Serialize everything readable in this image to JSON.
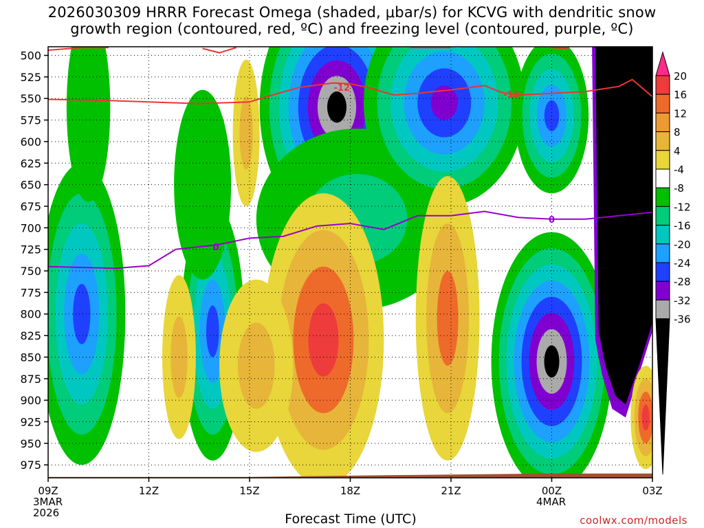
{
  "title": {
    "line1": "2026030309 HRRR Forecast Omega (shaded, μbar/s) for KCVG with dendritic snow",
    "line2": "growth region (contoured, red, ºC) and freezing level (contoured, purple, ºC)"
  },
  "footer": {
    "xlabel": "Forecast Time (UTC)",
    "credit": "coolwx.com/models",
    "date_first": [
      "3MAR",
      "2026"
    ],
    "date_second": "4MAR"
  },
  "chart_data": {
    "type": "heatmap",
    "variable": "Omega",
    "units": "μbar/s",
    "x_ticks": [
      "09Z",
      "12Z",
      "15Z",
      "18Z",
      "21Z",
      "00Z",
      "03Z"
    ],
    "x_range_hours": [
      0,
      18
    ],
    "y_ticks": [
      500,
      525,
      550,
      575,
      600,
      625,
      650,
      675,
      700,
      725,
      750,
      775,
      800,
      825,
      850,
      875,
      900,
      925,
      950,
      975
    ],
    "y_range_hpa": [
      490,
      990
    ],
    "y_reversed": true,
    "grid": "dotted",
    "colorbar": {
      "labels": [
        "20",
        "16",
        "12",
        "8",
        "4",
        "-4",
        "-8",
        "-12",
        "-16",
        "-20",
        "-24",
        "-28",
        "-32",
        "-36"
      ],
      "colors": [
        "#ff2b8a",
        "#ee3b3b",
        "#ee6a2a",
        "#ee9a33",
        "#e7b53a",
        "#e8d63a",
        "#ffffff",
        "#00c000",
        "#00cc7a",
        "#00c8c0",
        "#1ea0ff",
        "#2040ff",
        "#8000d0",
        "#aaaaaa",
        "#000000"
      ]
    },
    "dendritic_contour": {
      "label": "-12",
      "color": "#ee3333",
      "points": [
        [
          0,
          551
        ],
        [
          1.5,
          552
        ],
        [
          3,
          554
        ],
        [
          4.5,
          556
        ],
        [
          6,
          554
        ],
        [
          6.5,
          548
        ],
        [
          7.5,
          537
        ],
        [
          8.5,
          532
        ],
        [
          9,
          533
        ],
        [
          9.5,
          537
        ],
        [
          10.3,
          546
        ],
        [
          11,
          544
        ],
        [
          12,
          540
        ],
        [
          13,
          535
        ],
        [
          13.5,
          543
        ],
        [
          14,
          546
        ],
        [
          15,
          544
        ],
        [
          16,
          542
        ],
        [
          17,
          536
        ],
        [
          17.4,
          528
        ],
        [
          17.7,
          538
        ],
        [
          18,
          548
        ]
      ],
      "top_fragments": [
        [
          [
            0,
            494
          ],
          [
            1,
            491
          ],
          [
            1.8,
            491
          ]
        ],
        [
          [
            4.6,
            492
          ],
          [
            5.1,
            497
          ],
          [
            5.6,
            491
          ]
        ],
        [
          [
            10.8,
            491
          ],
          [
            12,
            491
          ]
        ],
        [
          [
            15,
            491
          ],
          [
            15.5,
            492
          ]
        ]
      ]
    },
    "freezing_contour": {
      "label": "0",
      "color": "#9900cc",
      "points": [
        [
          0,
          745
        ],
        [
          2,
          747
        ],
        [
          3,
          744
        ],
        [
          3.8,
          725
        ],
        [
          4.5,
          722
        ],
        [
          5,
          720
        ],
        [
          6,
          712
        ],
        [
          7,
          710
        ],
        [
          8,
          698
        ],
        [
          9,
          695
        ],
        [
          10,
          702
        ],
        [
          11,
          686
        ],
        [
          12,
          686
        ],
        [
          13,
          681
        ],
        [
          14,
          688
        ],
        [
          15,
          690
        ],
        [
          16,
          690
        ],
        [
          17,
          686
        ],
        [
          18,
          682
        ]
      ]
    },
    "surface_band_color": "#a0522d"
  }
}
